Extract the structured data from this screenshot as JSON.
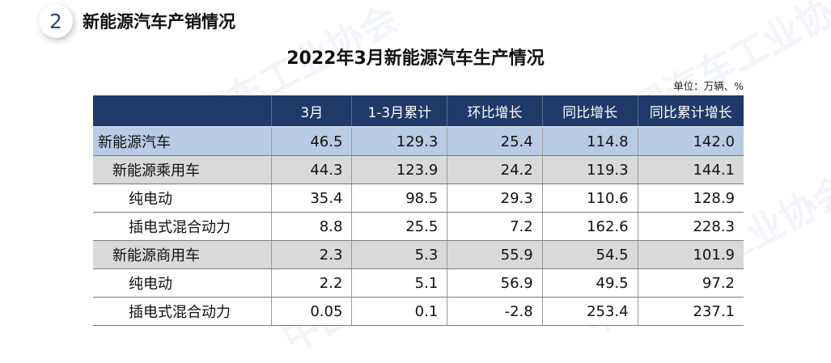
{
  "section": {
    "number": "2",
    "title": "新能源汽车产销情况"
  },
  "title": "2022年3月新能源汽车生产情况",
  "unit": "单位：万辆、%",
  "watermark": "中国汽车工业协会",
  "table": {
    "headers": [
      "",
      "3月",
      "1-3月累计",
      "环比增长",
      "同比增长",
      "同比累计增长"
    ],
    "rows": [
      {
        "label": "新能源汽车",
        "level": 0,
        "values": [
          "46.5",
          "129.3",
          "25.4",
          "114.8",
          "142.0"
        ]
      },
      {
        "label": "新能源乘用车",
        "level": 1,
        "values": [
          "44.3",
          "123.9",
          "24.2",
          "119.3",
          "144.1"
        ]
      },
      {
        "label": "纯电动",
        "level": 2,
        "values": [
          "35.4",
          "98.5",
          "29.3",
          "110.6",
          "128.9"
        ]
      },
      {
        "label": "插电式混合动力",
        "level": 2,
        "values": [
          "8.8",
          "25.5",
          "7.2",
          "162.6",
          "228.3"
        ]
      },
      {
        "label": "新能源商用车",
        "level": 1,
        "values": [
          "2.3",
          "5.3",
          "55.9",
          "54.5",
          "101.9"
        ]
      },
      {
        "label": "纯电动",
        "level": 2,
        "values": [
          "2.2",
          "5.1",
          "56.9",
          "49.5",
          "97.2"
        ]
      },
      {
        "label": "插电式混合动力",
        "level": 2,
        "values": [
          "0.05",
          "0.1",
          "-2.8",
          "253.4",
          "237.1"
        ]
      }
    ]
  }
}
